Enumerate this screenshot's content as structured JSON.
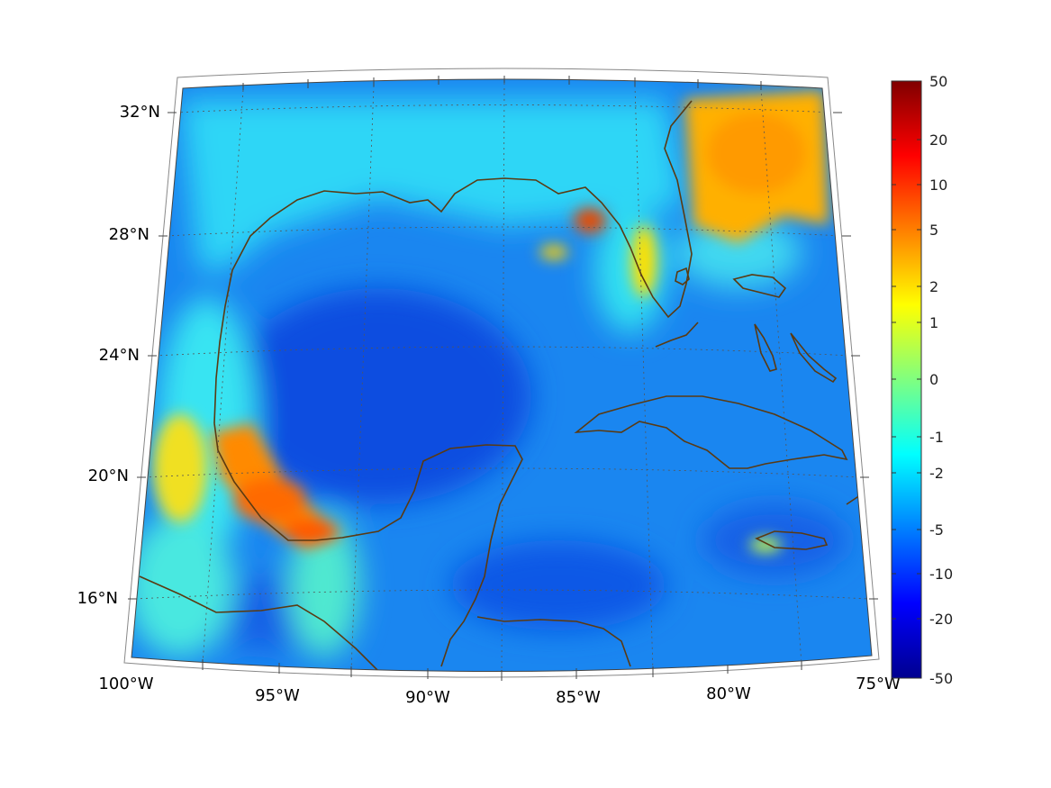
{
  "map": {
    "projection": "lambert-conformal-conic",
    "region": "Gulf of Mexico and Caribbean",
    "lon_range": [
      -100,
      -75
    ],
    "lat_range": [
      14,
      33
    ],
    "graticule": "dotted",
    "coastline_color": "#5a3a12",
    "longitude_labels": [
      "100°W",
      "95°W",
      "90°W",
      "85°W",
      "80°W",
      "75°W"
    ],
    "latitude_labels": [
      "32°N",
      "28°N",
      "24°N",
      "20°N",
      "16°N"
    ]
  },
  "colorbar": {
    "colormap": "jet",
    "orientation": "vertical",
    "placement": "right",
    "tick_labels": [
      "50",
      "20",
      "10",
      "5",
      "2",
      "1",
      "0",
      "-1",
      "-2",
      "-5",
      "-10",
      "-20",
      "-50"
    ]
  }
}
